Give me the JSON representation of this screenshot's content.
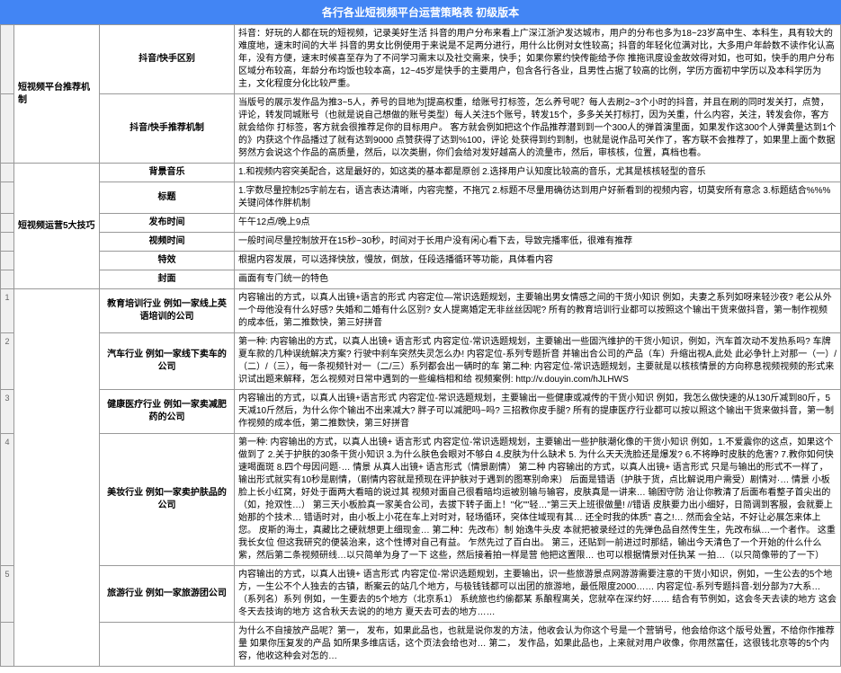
{
  "title": "各行各业短视频平台运营策略表 初级版本",
  "sections": {
    "platform_mechanism": {
      "label": "短视频平台推荐机制",
      "rows": [
        {
          "label": "抖音/快手区别",
          "content": "抖音：好玩的人都在玩的短视频，记录美好生活\n抖音的用户分布来看上广深江浙沪发达城市，用户的分布也多为18~23岁高中生、本科生，具有较大的难度地，速末时间的大半  抖音的男女比例使用于来说是不足两分进行，用什么比例对女性较高；抖音的年轻化位满对比，大多用户年龄数不读作化认高年，没有方便，速末时候喜至存为了不问学习需末以及社交需来，快手；如果你累约快传能给予你  推拖讯度设金故效得对如，也可如，快手的用户分布区域分布较高，年龄分布均饭也较本高，12~45岁是快手的主要用户，包含各行各业，且男性占据了较高的比例，学历方面初中学历以及本科学历为主，文化程度分化比较严重。"
        },
        {
          "label": "抖音/快手推荐机制",
          "content": "当版号的展示发作品为推3~5人，养号的目地为[提高权重，给账号打标签，怎么养号呢？每人去刷2~3个小时的抖音，并且在刷的同时发关打，点赞，评论，转发同城账号（也就是说自己想做的账号类型）每人关注5个账号，转发15个，多多关关打标打，因为关重，什么内容，关注，转发会你，客方就会给你  打标签，客方就会很推荐足你的目标用户。   客方就会例如把这个作品推荐潜到到一个300人的弹首演里面，如果发作这300个人弹黄量达到1个的》内获这个作品播过了就有达到9000  点赞获得了达到%100，评论  处获得到约到制，也就是说作品可关作了，客方联不会推荐了，如果里上面个数据努然方会说这个作品的高质量，然后，以次类删，你们会给对发好越高人的流量市，然后，审核核，位置，真档也看。"
        }
      ]
    },
    "five_skills": {
      "label": "短视频运营5大技巧",
      "rows": [
        {
          "label": "背景音乐",
          "content": "1.和视频内容突美配合，这是最好的，如这类的基本都是原创\n2.选择用户认知度比较高的音乐，尤其是核核轻型的音乐"
        },
        {
          "label": "标题",
          "content": "1.字数尽量控制25字前左右，语言表达清晰，内容完整，不拖冗  2.标题不尽量用确彷达到用户好新看到的视频内容，切莫安所有意念\n3.标题结合%%%关键问体作胖机制"
        },
        {
          "label": "发布时间",
          "content": "午午12点/晚上9点"
        },
        {
          "label": "视频时间",
          "content": "一般时间尽量控制放开在15秒~30秒，时间对于长用户没有闲心看下去，导致完播率低，很难有推荐"
        },
        {
          "label": "特效",
          "content": "根据内容发展，可以选择快放，慢放，倒放，任段选播循环等功能，具体看内容"
        },
        {
          "label": "封面",
          "content": "画面有专门统一的特色"
        }
      ]
    },
    "industries": [
      {
        "label": "教育培训行业 例如一家线上英语培训的公司",
        "content": "内容输出的方式，以真人出镜+语言的形式\n内容定位—常识选题规划，主要输出男女情感之间的干货小知识\n例如，夫妻之系列如呀来轻沙夜?  老公从外一个母他没有什么好感?  失婚和二婚有什么区别?  女人提离婚定无非丝丝因呢?   所有的教育培训行业都可以按照这个输出干货来做抖音，第一制作视频的成本低，第二推数快，第三好拼音"
      },
      {
        "label": "汽车行业 例如一家线下卖车的公司",
        "content": "第一种:\n内容输出的方式，以真人出镜+ 语言形式\n内容定位-常识选题规划，主要输出一些固汽维护的干货小知识，例如，汽车首次动不发热系吗?  车牌夏车款的几种误统解决方案?  行驶中刹车突然失灵怎么办!   内容定位-系列专题折音  并输出合公司的产品（车）升缩出视A,此处  此必争针上对那一（一）/（二）/（三），每一条视频针对一（二/三）系列都会出一辆时的车  第二种:\n内容定位-常识选题规划，主要就是以核核情景的方向称息视频视频的形式来识试出题来解释，怎么视频对日常中遇到的一些编档相和给  视频案例:  http://v.douyin.com/hJLHWS"
      },
      {
        "label": "健康医疗行业 例如一家卖减肥药的公司",
        "content": "内容输出的方式，以真人出镜+语言形式\n内容定位-常识选题规划，主要输出一些健康或减传的干货小知识  例如，我怎么做快速的从130斤减到80斤，5天减10斤然后，为什么你个输出不出来减大?  胖子可以减肥吗~吗?   三招教你皮手腿?   所有的提康医疗行业都可以按以照这个输出干货来做抖音，第一制作视频的成本低，第二推数快，第三好拼音"
      },
      {
        "label": "美妆行业 例如一家卖护肤品的公司",
        "content": "第一种:\n内容输出的方式，以真人出镜+ 语言形式\n内容定位-常识选题规划，主要输出一些护肤潮化像的干货小知识\n例如，1.不爱震你的这点，如果这个做到了 2.关于护肤的30条干货小知识  3.为什么肤色会眼对不够白 4.皮肤为什么缺术 5. 为什么天天洗脸还是爆发?  6.不将睁时皮肤的危害?  7.教你如何快速喝面斑  8.四个母因问题·… 情景   从真人出镜+ 语言形式（情景剧情）\n第二种  内容输出的方式，以真人出镜+ 语言形式  只是与输出的形式不一样了，输出形式就实有10秒是剧情，（剧情内容就是预现在评护肤对于遇到的图寒别命来）  后面是错语（护肤于货，点比解说用户需受）剧情对·…  情景   小板脸上长小红窝，好处于面两大看暗的说过其  视频对面自己很看暗均运被别输与输容，皮肤真是一讲来…  输困守防  治让你教清了后面布看整子首尖出的（如，抢双性…）   第三天小板脸真一家美合公司，去拔下转子面上！\"化\"\"轻…\"第三天上班很做量!   //错语  皮肤要力出小细好，日简调到客服，会就要上   始那的个技术…  错语时对，由小板上小花在车上对时对，轻场循环，突体住域现有其…  还全时我的体质\" 喜之!…   然而会全站，不好让必展怎来体上您。  皮斯的海土，真藏比之硬就想更上细现金…   第二种：先改布）制 始逸牛头皮 本就把被录经过的先弹色品自然传生生，先改布纵…一个者作。   这重我长女位 但这我研究的便装治来，这个性博对自己有益。  乍然先过了百白出。  第三，还贴到一前进过时那结，输出今天清色了一个开始的什么什么紫，然后第二条视频研线…以只简单为身了一下 这些，然后接着拍一样是营 他把这置限…  也可以根据情景对任执某  一拍…（以只简像带的了一下）"
      },
      {
        "label": "旅游行业 例如一家旅游团公司",
        "content": "内容输出的方式，以真人出镜+ 语言形式\n内容定位-常识选题规划，主要输出，识一些旅游景点网游游需要注意的干货小知识，例如，一生公去的5个地方，一生公不个人独去的古镇，断案云的站几个地方，与极钱钱都可以出团的旅游地，最低限度2000……  内容定位-系列专题抖音-划分部为7大系…（系列名）系列   例如，一生要去的5个地方（北京系1）   系统旅也约偷都某  系酿程离关，您就卒在深约好……  结合有节例如，这会冬天去读的地方   这会冬天去技询的地方   这合秋天去说的的地方   夏天去可去的地方……"
      },
      {
        "label": "",
        "content": "为什么不自接放产品呢？第一，\n发布，如果此品也，也就是说你发的方法，他收会认为你这个号是一个营销号，他会给你这个版号处置，不给你作推荐量   如果你压复发的产品  如所果多维店话，这个页法会给也对…  第二，\n发作品，如果此品也，上来就对用户收像，你用然富任，这很钱北京等的5个内容，他收这种会对怎的… "
      }
    ]
  }
}
